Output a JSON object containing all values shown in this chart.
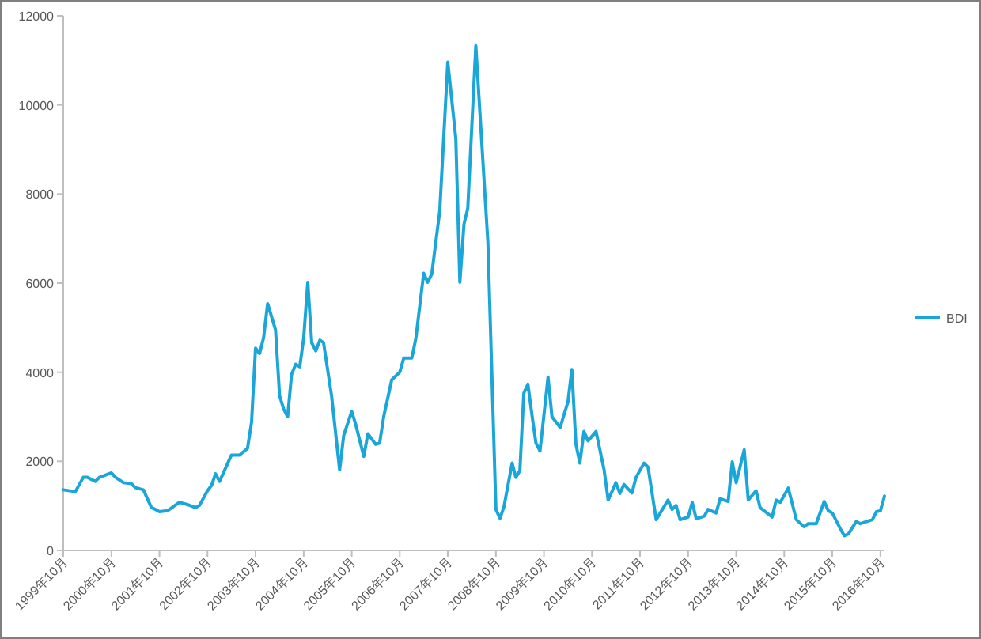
{
  "chart_data": {
    "type": "line",
    "x": [
      "1999-10",
      "2000-01",
      "2000-03",
      "2000-04",
      "2000-06",
      "2000-07",
      "2000-10",
      "2000-11",
      "2001-01",
      "2001-03",
      "2001-04",
      "2001-06",
      "2001-08",
      "2001-09",
      "2001-10",
      "2001-12",
      "2002-03",
      "2002-05",
      "2002-07",
      "2002-08",
      "2002-10",
      "2002-11",
      "2002-12",
      "2003-01",
      "2003-04",
      "2003-06",
      "2003-08",
      "2003-09",
      "2003-10",
      "2003-11",
      "2003-12",
      "2004-01",
      "2004-03",
      "2004-04",
      "2004-05",
      "2004-06",
      "2004-07",
      "2004-08",
      "2004-09",
      "2004-10",
      "2004-11",
      "2004-12",
      "2005-01",
      "2005-02",
      "2005-03",
      "2005-05",
      "2005-07",
      "2005-08",
      "2005-10",
      "2005-11",
      "2006-01",
      "2006-02",
      "2006-04",
      "2006-05",
      "2006-06",
      "2006-08",
      "2006-10",
      "2006-11",
      "2007-01",
      "2007-02",
      "2007-04",
      "2007-05",
      "2007-06",
      "2007-08",
      "2007-10",
      "2007-12",
      "2008-01",
      "2008-02",
      "2008-03",
      "2008-05",
      "2008-08",
      "2008-10",
      "2008-11",
      "2008-12",
      "2009-02",
      "2009-03",
      "2009-04",
      "2009-05",
      "2009-06",
      "2009-07",
      "2009-08",
      "2009-09",
      "2009-11",
      "2009-12",
      "2010-02",
      "2010-04",
      "2010-05",
      "2010-06",
      "2010-07",
      "2010-08",
      "2010-09",
      "2010-11",
      "2011-01",
      "2011-02",
      "2011-04",
      "2011-05",
      "2011-06",
      "2011-08",
      "2011-09",
      "2011-11",
      "2011-12",
      "2012-02",
      "2012-05",
      "2012-06",
      "2012-07",
      "2012-08",
      "2012-10",
      "2012-11",
      "2012-12",
      "2013-02",
      "2013-03",
      "2013-05",
      "2013-06",
      "2013-08",
      "2013-09",
      "2013-10",
      "2013-12",
      "2014-01",
      "2014-03",
      "2014-04",
      "2014-07",
      "2014-08",
      "2014-09",
      "2014-11",
      "2015-01",
      "2015-03",
      "2015-04",
      "2015-06",
      "2015-08",
      "2015-09",
      "2015-10",
      "2015-12",
      "2016-01",
      "2016-02",
      "2016-04",
      "2016-05",
      "2016-08",
      "2016-09",
      "2016-10",
      "2016-11"
    ],
    "series": [
      {
        "name": "BDI",
        "color": "#1ba6d9",
        "values": [
          1360,
          1320,
          1640,
          1640,
          1550,
          1640,
          1740,
          1640,
          1520,
          1500,
          1410,
          1360,
          960,
          920,
          870,
          890,
          1080,
          1030,
          960,
          1010,
          1340,
          1460,
          1720,
          1550,
          2140,
          2140,
          2290,
          2880,
          4540,
          4420,
          4770,
          5540,
          4950,
          3470,
          3180,
          3000,
          3950,
          4180,
          4120,
          4770,
          6020,
          4660,
          4480,
          4720,
          4660,
          3470,
          1810,
          2580,
          3120,
          2820,
          2110,
          2620,
          2380,
          2410,
          3000,
          3830,
          4000,
          4320,
          4320,
          4770,
          6220,
          6020,
          6200,
          7620,
          10960,
          9250,
          6020,
          7320,
          7680,
          11330,
          6910,
          920,
          720,
          980,
          1960,
          1640,
          1790,
          3530,
          3730,
          3060,
          2410,
          2230,
          3890,
          3000,
          2760,
          3330,
          4060,
          2380,
          1960,
          2670,
          2460,
          2670,
          1810,
          1130,
          1520,
          1280,
          1480,
          1290,
          1640,
          1960,
          1870,
          690,
          1130,
          920,
          1010,
          690,
          750,
          1080,
          710,
          770,
          920,
          840,
          1160,
          1100,
          1990,
          1520,
          2260,
          1130,
          1340,
          960,
          750,
          1130,
          1080,
          1400,
          690,
          530,
          600,
          600,
          1100,
          890,
          840,
          490,
          330,
          370,
          650,
          600,
          690,
          870,
          890,
          1220
        ]
      }
    ],
    "xlim": [
      "1999-10",
      "2016-11"
    ],
    "xticks": [
      {
        "value": "1999-10",
        "label": "1999年10月"
      },
      {
        "value": "2000-10",
        "label": "2000年10月"
      },
      {
        "value": "2001-10",
        "label": "2001年10月"
      },
      {
        "value": "2002-10",
        "label": "2002年10月"
      },
      {
        "value": "2003-10",
        "label": "2003年10月"
      },
      {
        "value": "2004-10",
        "label": "2004年10月"
      },
      {
        "value": "2005-10",
        "label": "2005年10月"
      },
      {
        "value": "2006-10",
        "label": "2006年10月"
      },
      {
        "value": "2007-10",
        "label": "2007年10月"
      },
      {
        "value": "2008-10",
        "label": "2008年10月"
      },
      {
        "value": "2009-10",
        "label": "2009年10月"
      },
      {
        "value": "2010-10",
        "label": "2010年10月"
      },
      {
        "value": "2011-10",
        "label": "2011年10月"
      },
      {
        "value": "2012-10",
        "label": "2012年10月"
      },
      {
        "value": "2013-10",
        "label": "2013年10月"
      },
      {
        "value": "2014-10",
        "label": "2014年10月"
      },
      {
        "value": "2015-10",
        "label": "2015年10月"
      },
      {
        "value": "2016-10",
        "label": "2016年10月"
      }
    ],
    "ylim": [
      0,
      12000
    ],
    "yticks": [
      0,
      2000,
      4000,
      6000,
      8000,
      10000,
      12000
    ],
    "legend": "right",
    "grid": false,
    "marker": "none",
    "line_style": "solid"
  }
}
